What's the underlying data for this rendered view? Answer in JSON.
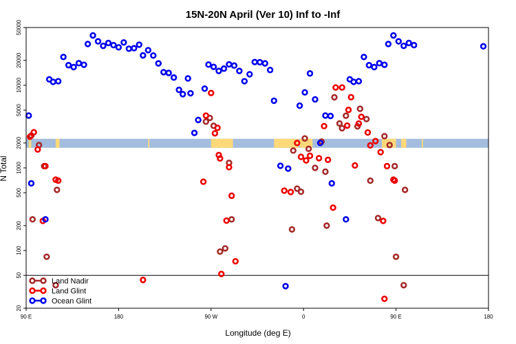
{
  "chart_data": {
    "type": "scatter",
    "title": "15N-20N April (Ver 10)   Inf to -Inf",
    "xlabel": "Longitude (deg E)",
    "ylabel": "N Total",
    "y_scale": "log",
    "xlim": [
      90,
      450
    ],
    "ylim": [
      20,
      50000
    ],
    "x_ticks": [
      {
        "value": 90,
        "label": "90 E"
      },
      {
        "value": 162,
        "label": "180"
      },
      {
        "value": 234,
        "label": "90 W"
      },
      {
        "value": 306,
        "label": "0"
      },
      {
        "value": 378,
        "label": "90 E"
      },
      {
        "value": 450,
        "label": "180"
      }
    ],
    "y_ticks": [
      {
        "value": 20,
        "label": "20"
      },
      {
        "value": 50,
        "label": "50"
      },
      {
        "value": 100,
        "label": "100"
      },
      {
        "value": 200,
        "label": "200"
      },
      {
        "value": 500,
        "label": "500"
      },
      {
        "value": 1000,
        "label": "1000"
      },
      {
        "value": 2000,
        "label": "2000"
      },
      {
        "value": 5000,
        "label": "5000"
      },
      {
        "value": 10000,
        "label": "10000"
      },
      {
        "value": 20000,
        "label": "20000"
      },
      {
        "value": 50000,
        "label": "50000"
      }
    ],
    "reference_line_y": 50,
    "map_strip": {
      "y_low": 1750,
      "y_high": 2250,
      "ocean_color": "#a4bddf",
      "land_color": "#fdd97a",
      "land_ranges": [
        [
          92,
          94
        ],
        [
          113,
          116
        ],
        [
          185,
          186
        ],
        [
          234,
          251
        ],
        [
          283,
          302
        ],
        [
          303,
          313
        ],
        [
          367,
          378
        ],
        [
          382,
          386
        ],
        [
          398,
          399
        ]
      ]
    },
    "legend_position": "bottom-left",
    "series": [
      {
        "name": "Land Nadir",
        "color": "#a52a2a",
        "points": [
          [
            94,
            2460
          ],
          [
            95,
            238
          ],
          [
            100,
            1890
          ],
          [
            104,
            1050
          ],
          [
            106,
            84
          ],
          [
            113,
            38
          ],
          [
            114,
            542
          ],
          [
            230,
            3630
          ],
          [
            233,
            4020
          ],
          [
            236,
            3230
          ],
          [
            241,
            97
          ],
          [
            245,
            106
          ],
          [
            248,
            1150
          ],
          [
            250,
            238
          ],
          [
            297,
            180
          ],
          [
            298,
            1620
          ],
          [
            301,
            561
          ],
          [
            304,
            514
          ],
          [
            307,
            2270
          ],
          [
            310,
            1700
          ],
          [
            315,
            1000
          ],
          [
            320,
            2080
          ],
          [
            323,
            900
          ],
          [
            330,
            7150
          ],
          [
            324,
            200
          ],
          [
            334,
            3450
          ],
          [
            336,
            3020
          ],
          [
            339,
            4280
          ],
          [
            348,
            3180
          ],
          [
            350,
            5190
          ],
          [
            355,
            3900
          ],
          [
            358,
            700
          ],
          [
            364,
            247
          ],
          [
            369,
            2420
          ],
          [
            373,
            1890
          ],
          [
            377,
            1050
          ],
          [
            378,
            84
          ],
          [
            384,
            38
          ],
          [
            385,
            542
          ]
        ]
      },
      {
        "name": "Land Glint",
        "color": "#ee0000",
        "points": [
          [
            93,
            2380
          ],
          [
            96,
            2700
          ],
          [
            99,
            1670
          ],
          [
            103,
            228
          ],
          [
            105,
            1050
          ],
          [
            113,
            720
          ],
          [
            115,
            700
          ],
          [
            181,
            44
          ],
          [
            228,
            680
          ],
          [
            230,
            4290
          ],
          [
            234,
            8060
          ],
          [
            237,
            2620
          ],
          [
            239,
            3050
          ],
          [
            240,
            1430
          ],
          [
            241,
            1300
          ],
          [
            242,
            52
          ],
          [
            246,
            230
          ],
          [
            248,
            1020
          ],
          [
            250,
            460
          ],
          [
            253,
            74
          ],
          [
            291,
            530
          ],
          [
            296,
            510
          ],
          [
            301,
            2000
          ],
          [
            304,
            1360
          ],
          [
            308,
            1230
          ],
          [
            311,
            1400
          ],
          [
            318,
            1310
          ],
          [
            322,
            3200
          ],
          [
            325,
            1250
          ],
          [
            329,
            330
          ],
          [
            331,
            9400
          ],
          [
            336,
            9400
          ],
          [
            340,
            3250
          ],
          [
            341,
            5030
          ],
          [
            343,
            7170
          ],
          [
            346,
            1070
          ],
          [
            349,
            3440
          ],
          [
            351,
            4150
          ],
          [
            356,
            2680
          ],
          [
            358,
            1870
          ],
          [
            362,
            2110
          ],
          [
            366,
            1550
          ],
          [
            368,
            228
          ],
          [
            369,
            26
          ],
          [
            371,
            1050
          ],
          [
            376,
            720
          ],
          [
            377,
            700
          ]
        ]
      },
      {
        "name": "Ocean Glint",
        "color": "#0000ee",
        "points": [
          [
            92,
            4300
          ],
          [
            94,
            650
          ],
          [
            105,
            238
          ],
          [
            108,
            11800
          ],
          [
            111,
            11000
          ],
          [
            115,
            11200
          ],
          [
            119,
            22000
          ],
          [
            123,
            17500
          ],
          [
            127,
            16600
          ],
          [
            131,
            18500
          ],
          [
            135,
            17700
          ],
          [
            138,
            31600
          ],
          [
            142,
            40100
          ],
          [
            146,
            34000
          ],
          [
            150,
            30000
          ],
          [
            154,
            32500
          ],
          [
            158,
            30600
          ],
          [
            162,
            28800
          ],
          [
            166,
            33000
          ],
          [
            170,
            27700
          ],
          [
            174,
            28100
          ],
          [
            178,
            31000
          ],
          [
            181,
            23000
          ],
          [
            185,
            26600
          ],
          [
            189,
            22900
          ],
          [
            193,
            18400
          ],
          [
            197,
            14400
          ],
          [
            201,
            14100
          ],
          [
            205,
            12400
          ],
          [
            209,
            8800
          ],
          [
            212,
            7800
          ],
          [
            216,
            12100
          ],
          [
            218,
            8000
          ],
          [
            221,
            2650
          ],
          [
            224,
            3800
          ],
          [
            229,
            9100
          ],
          [
            232,
            17800
          ],
          [
            236,
            16700
          ],
          [
            240,
            14900
          ],
          [
            244,
            15900
          ],
          [
            248,
            17900
          ],
          [
            252,
            17300
          ],
          [
            256,
            14900
          ],
          [
            260,
            11200
          ],
          [
            264,
            13600
          ],
          [
            268,
            19100
          ],
          [
            272,
            19000
          ],
          [
            276,
            18400
          ],
          [
            280,
            15300
          ],
          [
            283,
            6500
          ],
          [
            288,
            1060
          ],
          [
            292,
            37
          ],
          [
            294,
            980
          ],
          [
            303,
            5660
          ],
          [
            307,
            8200
          ],
          [
            311,
            13900
          ],
          [
            315,
            6750
          ],
          [
            319,
            2000
          ],
          [
            323,
            4300
          ],
          [
            327,
            4250
          ],
          [
            328,
            650
          ],
          [
            339,
            238
          ],
          [
            342,
            11800
          ],
          [
            345,
            11000
          ],
          [
            349,
            11200
          ],
          [
            353,
            22000
          ],
          [
            357,
            17500
          ],
          [
            361,
            16600
          ],
          [
            365,
            18500
          ],
          [
            369,
            17700
          ],
          [
            372,
            31600
          ],
          [
            376,
            40100
          ],
          [
            380,
            34000
          ],
          [
            384,
            30000
          ],
          [
            388,
            32500
          ],
          [
            392,
            30600
          ],
          [
            446,
            29600
          ]
        ]
      }
    ]
  }
}
